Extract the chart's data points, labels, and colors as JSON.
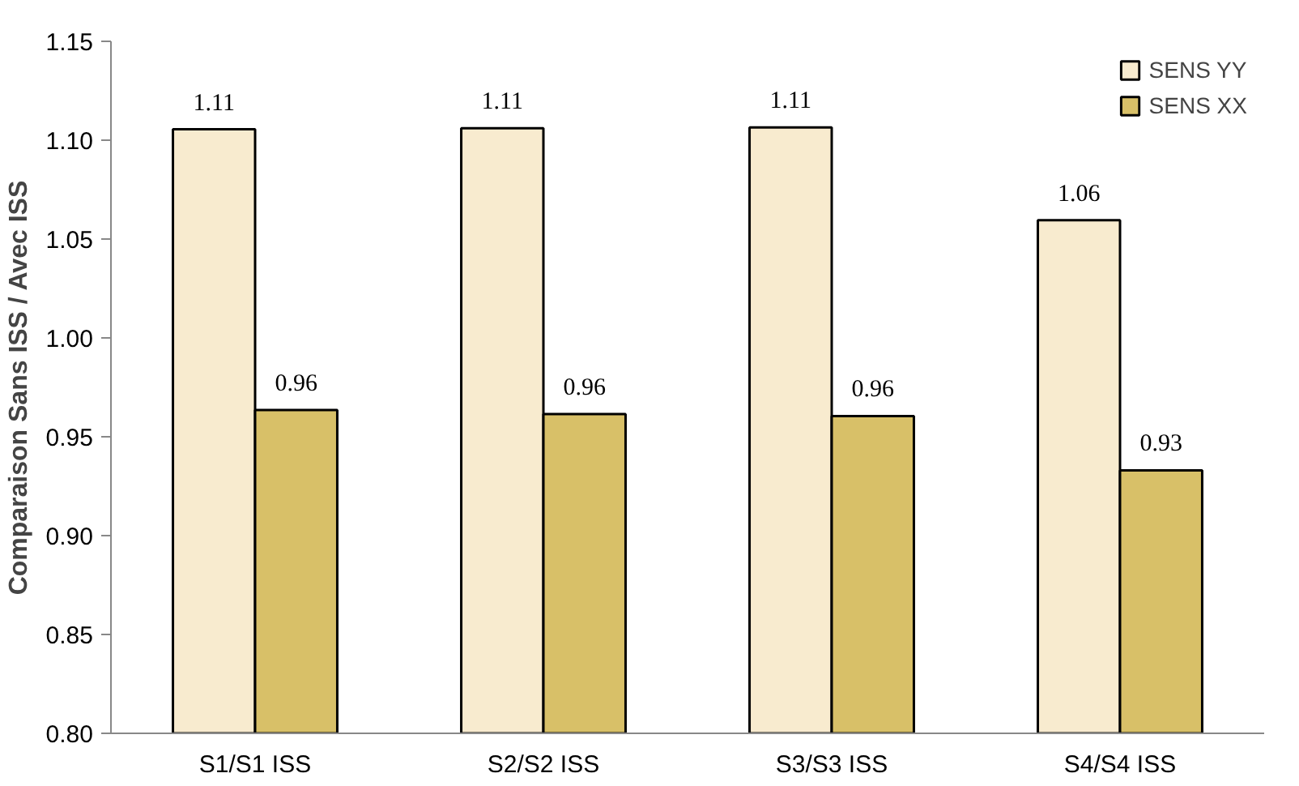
{
  "chart_data": {
    "type": "bar",
    "ylabel": "Comparaison Sans ISS / Avec ISS",
    "categories": [
      "S1/S1 ISS",
      "S2/S2 ISS",
      "S3/S3 ISS",
      "S4/S4 ISS"
    ],
    "series": [
      {
        "name": "SENS YY",
        "color": "#f8ebcf",
        "values": [
          1.1055,
          1.106,
          1.1065,
          1.0595
        ],
        "value_labels": [
          "1.11",
          "1.11",
          "1.11",
          "1.06"
        ]
      },
      {
        "name": "SENS XX",
        "color": "#d8c068",
        "values": [
          0.9635,
          0.9615,
          0.9605,
          0.933
        ],
        "value_labels": [
          "0.96",
          "0.96",
          "0.96",
          "0.93"
        ]
      }
    ],
    "ylim": [
      0.8,
      1.15
    ],
    "yticks": [
      "0.80",
      "0.85",
      "0.90",
      "0.95",
      "1.00",
      "1.05",
      "1.10",
      "1.15"
    ],
    "grid": false,
    "legend": "top right"
  }
}
